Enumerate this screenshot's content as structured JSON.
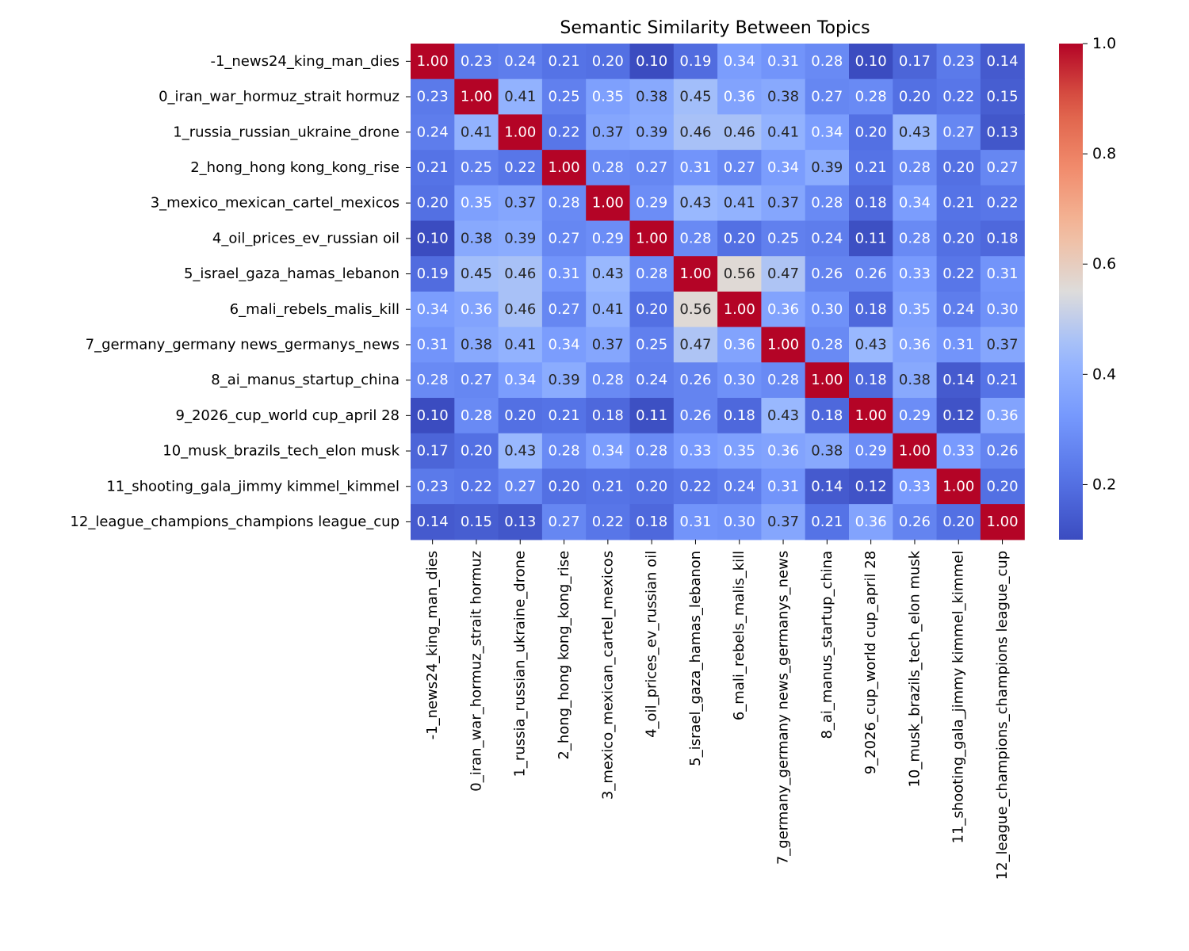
{
  "chart_data": {
    "type": "heatmap",
    "title": "Semantic Similarity Between Topics",
    "xlabel": "",
    "ylabel": "",
    "colormap": "coolwarm",
    "value_range": [
      0.1,
      1.0
    ],
    "colorbar_ticks": [
      0.2,
      0.4,
      0.6,
      0.8,
      1.0
    ],
    "colorbar_tick_labels": [
      "0.2",
      "0.4",
      "0.6",
      "0.8",
      "1.0"
    ],
    "labels": [
      "-1_news24_king_man_dies",
      "0_iran_war_hormuz_strait hormuz",
      "1_russia_russian_ukraine_drone",
      "2_hong_hong kong_kong_rise",
      "3_mexico_mexican_cartel_mexicos",
      "4_oil_prices_ev_russian oil",
      "5_israel_gaza_hamas_lebanon",
      "6_mali_rebels_malis_kill",
      "7_germany_germany news_germanys_news",
      "8_ai_manus_startup_china",
      "9_2026_cup_world cup_april 28",
      "10_musk_brazils_tech_elon musk",
      "11_shooting_gala_jimmy kimmel_kimmel",
      "12_league_champions_champions league_cup"
    ],
    "values": [
      [
        1.0,
        0.23,
        0.24,
        0.21,
        0.2,
        0.1,
        0.19,
        0.34,
        0.31,
        0.28,
        0.1,
        0.17,
        0.23,
        0.14
      ],
      [
        0.23,
        1.0,
        0.41,
        0.25,
        0.35,
        0.38,
        0.45,
        0.36,
        0.38,
        0.27,
        0.28,
        0.2,
        0.22,
        0.15
      ],
      [
        0.24,
        0.41,
        1.0,
        0.22,
        0.37,
        0.39,
        0.46,
        0.46,
        0.41,
        0.34,
        0.2,
        0.43,
        0.27,
        0.13
      ],
      [
        0.21,
        0.25,
        0.22,
        1.0,
        0.28,
        0.27,
        0.31,
        0.27,
        0.34,
        0.39,
        0.21,
        0.28,
        0.2,
        0.27
      ],
      [
        0.2,
        0.35,
        0.37,
        0.28,
        1.0,
        0.29,
        0.43,
        0.41,
        0.37,
        0.28,
        0.18,
        0.34,
        0.21,
        0.22
      ],
      [
        0.1,
        0.38,
        0.39,
        0.27,
        0.29,
        1.0,
        0.28,
        0.2,
        0.25,
        0.24,
        0.11,
        0.28,
        0.2,
        0.18
      ],
      [
        0.19,
        0.45,
        0.46,
        0.31,
        0.43,
        0.28,
        1.0,
        0.56,
        0.47,
        0.26,
        0.26,
        0.33,
        0.22,
        0.31
      ],
      [
        0.34,
        0.36,
        0.46,
        0.27,
        0.41,
        0.2,
        0.56,
        1.0,
        0.36,
        0.3,
        0.18,
        0.35,
        0.24,
        0.3
      ],
      [
        0.31,
        0.38,
        0.41,
        0.34,
        0.37,
        0.25,
        0.47,
        0.36,
        1.0,
        0.28,
        0.43,
        0.36,
        0.31,
        0.37
      ],
      [
        0.28,
        0.27,
        0.34,
        0.39,
        0.28,
        0.24,
        0.26,
        0.3,
        0.28,
        1.0,
        0.18,
        0.38,
        0.14,
        0.21
      ],
      [
        0.1,
        0.28,
        0.2,
        0.21,
        0.18,
        0.11,
        0.26,
        0.18,
        0.43,
        0.18,
        1.0,
        0.29,
        0.12,
        0.36
      ],
      [
        0.17,
        0.2,
        0.43,
        0.28,
        0.34,
        0.28,
        0.33,
        0.35,
        0.36,
        0.38,
        0.29,
        1.0,
        0.33,
        0.26
      ],
      [
        0.23,
        0.22,
        0.27,
        0.2,
        0.21,
        0.2,
        0.22,
        0.24,
        0.31,
        0.14,
        0.12,
        0.33,
        1.0,
        0.2
      ],
      [
        0.14,
        0.15,
        0.13,
        0.27,
        0.22,
        0.18,
        0.31,
        0.3,
        0.37,
        0.21,
        0.36,
        0.26,
        0.2,
        1.0
      ]
    ]
  }
}
